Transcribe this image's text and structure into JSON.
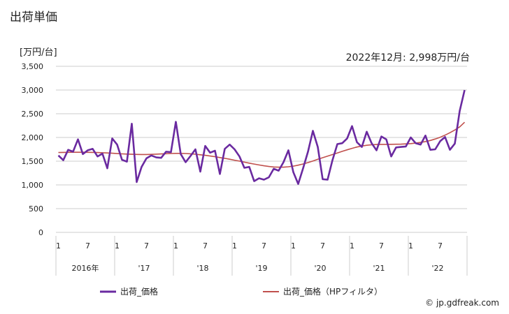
{
  "page": {
    "title": "出荷単価",
    "source": "© jp.gdfreak.com"
  },
  "chart_data": {
    "type": "line",
    "title": "",
    "unit_label": "[万円/台]",
    "annotation": "2022年12月: 2,998万円/台",
    "ylim": [
      0,
      3500
    ],
    "yticks": [
      0,
      500,
      1000,
      1500,
      2000,
      2500,
      3000,
      3500
    ],
    "ytick_labels": [
      "0",
      "500",
      "1,000",
      "1,500",
      "2,000",
      "2,500",
      "3,000",
      "3,500"
    ],
    "x_month_labels": [
      "1",
      "7",
      "1",
      "7",
      "1",
      "7",
      "1",
      "7",
      "1",
      "7",
      "1",
      "7",
      "1",
      "7"
    ],
    "x_year_labels": [
      "2016年",
      "'17",
      "'18",
      "'19",
      "'20",
      "'21",
      "'22"
    ],
    "grid": true,
    "legend_position": "bottom",
    "colors": {
      "series1": "#6a2aa0",
      "series2": "#c0504d",
      "grid": "#cccccc"
    },
    "series": [
      {
        "name": "出荷_価格",
        "values": [
          1620,
          1520,
          1740,
          1700,
          1960,
          1650,
          1730,
          1760,
          1600,
          1660,
          1350,
          1980,
          1850,
          1530,
          1490,
          2290,
          1060,
          1380,
          1560,
          1620,
          1580,
          1570,
          1700,
          1690,
          2330,
          1650,
          1480,
          1610,
          1750,
          1280,
          1820,
          1680,
          1720,
          1230,
          1760,
          1850,
          1750,
          1600,
          1360,
          1380,
          1080,
          1140,
          1110,
          1160,
          1340,
          1300,
          1480,
          1730,
          1270,
          1020,
          1350,
          1700,
          2140,
          1800,
          1120,
          1110,
          1520,
          1860,
          1880,
          1980,
          2240,
          1900,
          1800,
          2120,
          1880,
          1730,
          2020,
          1960,
          1600,
          1790,
          1800,
          1810,
          2000,
          1880,
          1850,
          2040,
          1740,
          1750,
          1920,
          2010,
          1740,
          1870,
          2560,
          2998
        ]
      },
      {
        "name": "出荷_価格（HPフィルタ）",
        "values": [
          1683,
          1685,
          1687,
          1688,
          1688,
          1688,
          1687,
          1685,
          1682,
          1678,
          1673,
          1667,
          1661,
          1655,
          1650,
          1645,
          1643,
          1641,
          1641,
          1644,
          1648,
          1653,
          1658,
          1662,
          1665,
          1665,
          1662,
          1656,
          1647,
          1636,
          1623,
          1609,
          1594,
          1577,
          1560,
          1541,
          1521,
          1501,
          1480,
          1459,
          1439,
          1420,
          1403,
          1388,
          1378,
          1373,
          1374,
          1382,
          1396,
          1416,
          1441,
          1471,
          1504,
          1539,
          1573,
          1607,
          1640,
          1674,
          1707,
          1740,
          1771,
          1798,
          1819,
          1835,
          1845,
          1851,
          1854,
          1855,
          1856,
          1857,
          1859,
          1864,
          1871,
          1881,
          1895,
          1913,
          1937,
          1967,
          2004,
          2048,
          2100,
          2158,
          2223,
          2320
        ]
      }
    ]
  }
}
